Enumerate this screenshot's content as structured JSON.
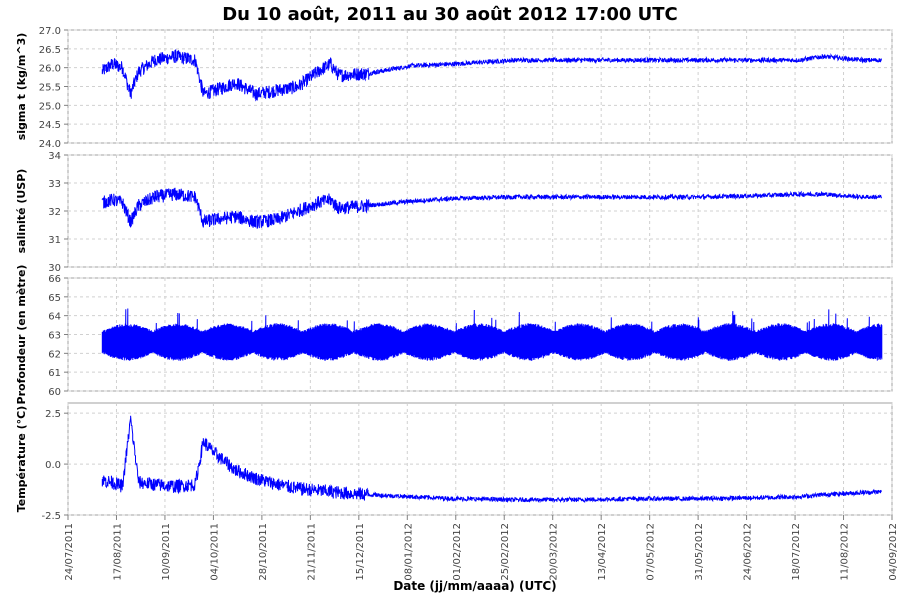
{
  "chart_data": {
    "type": "line",
    "title": "Du 10 août, 2011 au 30 août 2012 17:00 UTC",
    "xlabel": "Date (jj/mm/aaaa) (UTC)",
    "x_ticks": [
      "24/07/2011",
      "17/08/2011",
      "10/09/2011",
      "04/10/2011",
      "28/10/2011",
      "21/11/2011",
      "15/12/2011",
      "08/01/2012",
      "01/02/2012",
      "25/02/2012",
      "20/03/2012",
      "13/04/2012",
      "07/05/2012",
      "31/05/2012",
      "24/06/2012",
      "18/07/2012",
      "11/08/2012",
      "04/09/2012"
    ],
    "x_range": [
      "2011-07-24",
      "2012-09-04"
    ],
    "grid": true,
    "line_color": "#0000ff",
    "panels": [
      {
        "ylabel": "sigma t (kg/m^3)",
        "ylim": [
          24.0,
          27.0
        ],
        "y_ticks": [
          "24.0",
          "24.5",
          "25.0",
          "25.5",
          "26.0",
          "26.5",
          "27.0"
        ],
        "series": [
          {
            "x": [
              "2011-08-10",
              "2011-08-15",
              "2011-08-20",
              "2011-08-24",
              "2011-08-28",
              "2011-09-05",
              "2011-09-15",
              "2011-09-25",
              "2011-09-29",
              "2011-10-05",
              "2011-10-15",
              "2011-10-25",
              "2011-11-05",
              "2011-11-15",
              "2011-11-25",
              "2011-12-01",
              "2011-12-05",
              "2011-12-20",
              "2012-01-10",
              "2012-02-01",
              "2012-03-01",
              "2012-04-01",
              "2012-05-01",
              "2012-06-01",
              "2012-07-01",
              "2012-07-20",
              "2012-08-01",
              "2012-08-20",
              "2012-08-30"
            ],
            "y": [
              25.9,
              26.1,
              26.0,
              25.3,
              25.9,
              26.2,
              26.3,
              26.2,
              25.3,
              25.4,
              25.6,
              25.3,
              25.4,
              25.5,
              25.9,
              26.1,
              25.8,
              25.85,
              26.05,
              26.1,
              26.2,
              26.2,
              26.2,
              26.2,
              26.2,
              26.2,
              26.3,
              26.2,
              26.2
            ]
          }
        ]
      },
      {
        "ylabel": "salinité (USP)",
        "ylim": [
          30,
          34
        ],
        "y_ticks": [
          "30",
          "31",
          "32",
          "33",
          "34"
        ],
        "series": [
          {
            "x": [
              "2011-08-10",
              "2011-08-15",
              "2011-08-20",
              "2011-08-24",
              "2011-08-28",
              "2011-09-05",
              "2011-09-15",
              "2011-09-25",
              "2011-09-29",
              "2011-10-05",
              "2011-10-15",
              "2011-10-25",
              "2011-11-05",
              "2011-11-15",
              "2011-11-25",
              "2011-12-01",
              "2011-12-05",
              "2011-12-20",
              "2012-01-10",
              "2012-02-01",
              "2012-03-01",
              "2012-04-01",
              "2012-05-01",
              "2012-06-01",
              "2012-07-01",
              "2012-07-20",
              "2012-08-01",
              "2012-08-20",
              "2012-08-30"
            ],
            "y": [
              32.3,
              32.4,
              32.3,
              31.6,
              32.2,
              32.5,
              32.6,
              32.5,
              31.6,
              31.7,
              31.8,
              31.6,
              31.7,
              32.0,
              32.3,
              32.4,
              32.1,
              32.2,
              32.35,
              32.45,
              32.5,
              32.5,
              32.5,
              32.5,
              32.55,
              32.6,
              32.6,
              32.5,
              32.5
            ]
          }
        ]
      },
      {
        "ylabel": "Profondeur (en mètre)",
        "ylim": [
          60,
          66
        ],
        "y_ticks": [
          "60",
          "61",
          "62",
          "63",
          "64",
          "65",
          "66"
        ],
        "series": [
          {
            "x": [
              "2011-08-10",
              "2012-08-30"
            ],
            "y": [
              62.6,
              62.6
            ],
            "tidal_range": [
              61.6,
              63.6
            ]
          }
        ]
      },
      {
        "ylabel": "Température (°C)",
        "ylim": [
          -2.5,
          3.0
        ],
        "y_ticks": [
          "2.5",
          "0.0",
          "-2.5"
        ],
        "series": [
          {
            "x": [
              "2011-08-10",
              "2011-08-15",
              "2011-08-20",
              "2011-08-24",
              "2011-08-28",
              "2011-09-05",
              "2011-09-15",
              "2011-09-25",
              "2011-09-29",
              "2011-10-05",
              "2011-10-15",
              "2011-10-25",
              "2011-11-05",
              "2011-11-15",
              "2011-11-25",
              "2011-12-01",
              "2011-12-05",
              "2011-12-20",
              "2012-01-10",
              "2012-02-01",
              "2012-03-01",
              "2012-04-01",
              "2012-05-01",
              "2012-06-01",
              "2012-07-01",
              "2012-07-20",
              "2012-08-01",
              "2012-08-20",
              "2012-08-30"
            ],
            "y": [
              -0.8,
              -0.9,
              -1.1,
              2.2,
              -0.9,
              -1.0,
              -1.1,
              -1.0,
              1.1,
              0.5,
              -0.3,
              -0.7,
              -1.0,
              -1.2,
              -1.3,
              -1.35,
              -1.4,
              -1.5,
              -1.6,
              -1.7,
              -1.75,
              -1.75,
              -1.7,
              -1.7,
              -1.65,
              -1.6,
              -1.5,
              -1.4,
              -1.35
            ]
          }
        ]
      }
    ]
  }
}
